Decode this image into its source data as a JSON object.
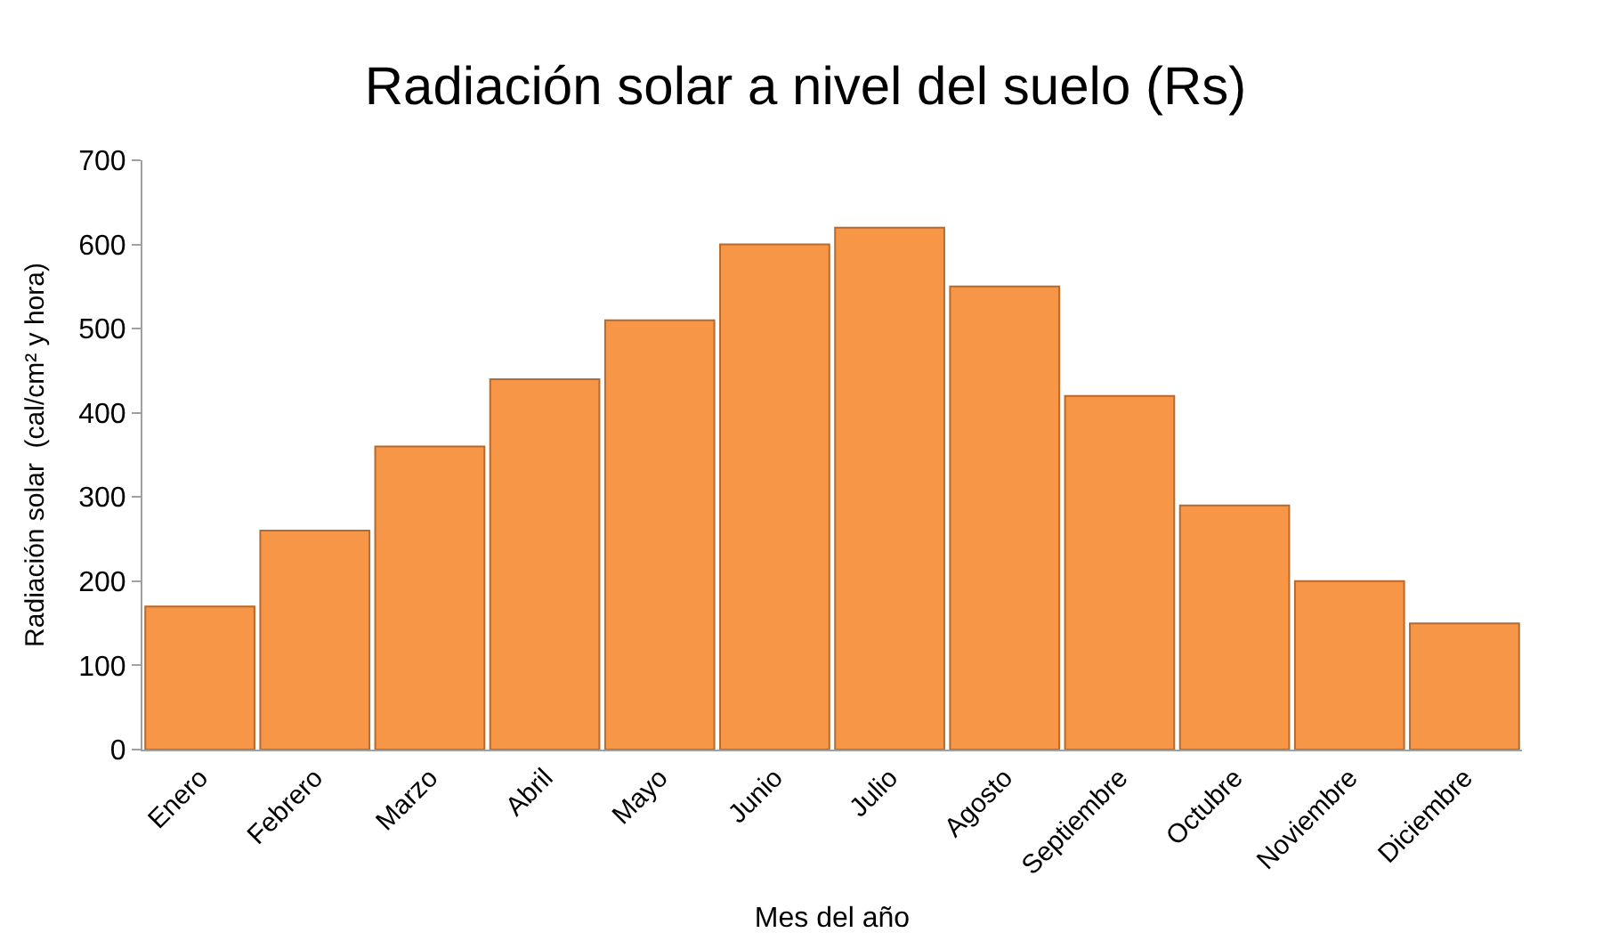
{
  "chart_data": {
    "type": "bar",
    "title": "Radiación solar a nivel del suelo (Rs)",
    "xlabel": "Mes del año",
    "ylabel": "Radiación solar  (cal/cm² y hora)",
    "categories": [
      "Enero",
      "Febrero",
      "Marzo",
      "Abril",
      "Mayo",
      "Junio",
      "Julio",
      "Agosto",
      "Septiembre",
      "Octubre",
      "Noviembre",
      "Diciembre"
    ],
    "values": [
      170,
      260,
      360,
      440,
      510,
      600,
      620,
      550,
      420,
      290,
      200,
      150
    ],
    "color": "#f79646",
    "ylim": [
      0,
      700
    ],
    "yticks": [
      0,
      100,
      200,
      300,
      400,
      500,
      600,
      700
    ]
  }
}
